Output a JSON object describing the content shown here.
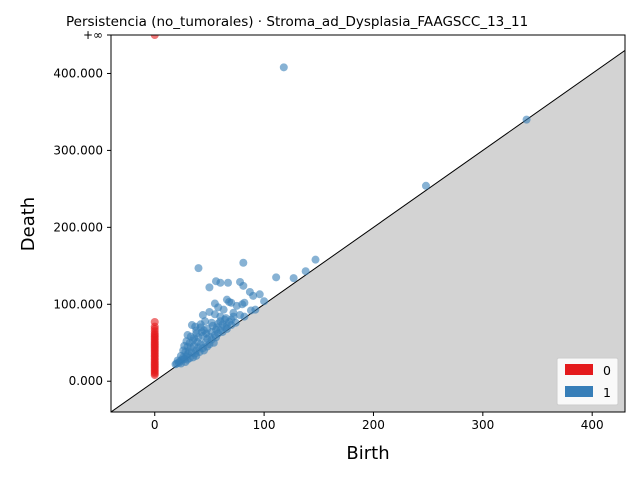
{
  "chart_data": {
    "type": "scatter",
    "title": "Persistencia (no_tumorales) · Stroma_ad_Dysplasia_FAAGSCC_13_11",
    "xlabel": "Birth",
    "ylabel": "Death",
    "xlim": [
      -40,
      430
    ],
    "ylim": [
      -40,
      450
    ],
    "x_ticks": [
      {
        "value": 0,
        "label": "0"
      },
      {
        "value": 100,
        "label": "100"
      },
      {
        "value": 200,
        "label": "200"
      },
      {
        "value": 300,
        "label": "300"
      },
      {
        "value": 400,
        "label": "400"
      }
    ],
    "y_ticks": [
      {
        "value": 0,
        "label": "0.000"
      },
      {
        "value": 100,
        "label": "100.000"
      },
      {
        "value": 200,
        "label": "200.000"
      },
      {
        "value": 300,
        "label": "300.000"
      },
      {
        "value": 400,
        "label": "400.000"
      },
      {
        "value": 450,
        "label": "+∞"
      }
    ],
    "infinity_value": 450,
    "diagonal": true,
    "legend_position": "lower-right",
    "series": [
      {
        "name": "0",
        "color": "#e41a1c",
        "points": [
          [
            0,
            450
          ],
          [
            0,
            77
          ],
          [
            0,
            71
          ],
          [
            0,
            68
          ],
          [
            0,
            65
          ],
          [
            0,
            62
          ],
          [
            0,
            60
          ],
          [
            0,
            58
          ],
          [
            0,
            56
          ],
          [
            0,
            54
          ],
          [
            0,
            52
          ],
          [
            0,
            50
          ],
          [
            0,
            48
          ],
          [
            0,
            46
          ],
          [
            0,
            44
          ],
          [
            0,
            42
          ],
          [
            0,
            40
          ],
          [
            0,
            38
          ],
          [
            0,
            36
          ],
          [
            0,
            34
          ],
          [
            0,
            32
          ],
          [
            0,
            30
          ],
          [
            0,
            28
          ],
          [
            0,
            26
          ],
          [
            0,
            24
          ],
          [
            0,
            22
          ],
          [
            0,
            20
          ],
          [
            0,
            18
          ],
          [
            0,
            16
          ],
          [
            0,
            14
          ],
          [
            0,
            12
          ],
          [
            0,
            10
          ],
          [
            0,
            8
          ]
        ]
      },
      {
        "name": "1",
        "color": "#377eb8",
        "points": [
          [
            118,
            408
          ],
          [
            340,
            340
          ],
          [
            248,
            254
          ],
          [
            147,
            158
          ],
          [
            138,
            143
          ],
          [
            127,
            134
          ],
          [
            111,
            135
          ],
          [
            81,
            154
          ],
          [
            40,
            147
          ],
          [
            50,
            122
          ],
          [
            56,
            130
          ],
          [
            60,
            128
          ],
          [
            67,
            128
          ],
          [
            78,
            129
          ],
          [
            81,
            124
          ],
          [
            87,
            116
          ],
          [
            96,
            113
          ],
          [
            100,
            104
          ],
          [
            90,
            111
          ],
          [
            88,
            92
          ],
          [
            92,
            93
          ],
          [
            80,
            100
          ],
          [
            82,
            102
          ],
          [
            75,
            98
          ],
          [
            70,
            102
          ],
          [
            66,
            106
          ],
          [
            68,
            103
          ],
          [
            55,
            101
          ],
          [
            58,
            96
          ],
          [
            63,
            93
          ],
          [
            72,
            89
          ],
          [
            78,
            86
          ],
          [
            82,
            84
          ],
          [
            44,
            86
          ],
          [
            50,
            90
          ],
          [
            55,
            87
          ],
          [
            60,
            84
          ],
          [
            65,
            82
          ],
          [
            70,
            80
          ],
          [
            34,
            73
          ],
          [
            37,
            71
          ],
          [
            42,
            70
          ],
          [
            48,
            68
          ],
          [
            53,
            72
          ],
          [
            58,
            75
          ],
          [
            62,
            74
          ],
          [
            66,
            72
          ],
          [
            38,
            66
          ],
          [
            43,
            64
          ],
          [
            47,
            62
          ],
          [
            52,
            64
          ],
          [
            56,
            67
          ],
          [
            60,
            66
          ],
          [
            64,
            70
          ],
          [
            50,
            58
          ],
          [
            30,
            60
          ],
          [
            33,
            58
          ],
          [
            36,
            56
          ],
          [
            40,
            57
          ],
          [
            44,
            59
          ],
          [
            48,
            55
          ],
          [
            52,
            54
          ],
          [
            56,
            57
          ],
          [
            29,
            52
          ],
          [
            32,
            50
          ],
          [
            35,
            53
          ],
          [
            39,
            51
          ],
          [
            42,
            48
          ],
          [
            46,
            50
          ],
          [
            50,
            48
          ],
          [
            54,
            50
          ],
          [
            27,
            46
          ],
          [
            30,
            45
          ],
          [
            33,
            44
          ],
          [
            36,
            46
          ],
          [
            40,
            44
          ],
          [
            44,
            43
          ],
          [
            48,
            45
          ],
          [
            38,
            40
          ],
          [
            26,
            40
          ],
          [
            28,
            38
          ],
          [
            31,
            39
          ],
          [
            34,
            37
          ],
          [
            37,
            36
          ],
          [
            41,
            38
          ],
          [
            45,
            40
          ],
          [
            30,
            35
          ],
          [
            24,
            33
          ],
          [
            26,
            31
          ],
          [
            29,
            32
          ],
          [
            32,
            30
          ],
          [
            35,
            31
          ],
          [
            38,
            33
          ],
          [
            27,
            29
          ],
          [
            30,
            28
          ],
          [
            21,
            27
          ],
          [
            23,
            26
          ],
          [
            25,
            28
          ],
          [
            28,
            25
          ],
          [
            22,
            24
          ],
          [
            19,
            22
          ],
          [
            20,
            23
          ],
          [
            24,
            23
          ],
          [
            55,
            60
          ],
          [
            58,
            62
          ],
          [
            62,
            64
          ],
          [
            66,
            68
          ],
          [
            70,
            73
          ],
          [
            74,
            76
          ],
          [
            60,
            78
          ],
          [
            64,
            80
          ],
          [
            52,
            76
          ],
          [
            46,
            78
          ],
          [
            42,
            74
          ],
          [
            38,
            62
          ],
          [
            45,
            66
          ],
          [
            57,
            70
          ],
          [
            68,
            77
          ],
          [
            72,
            84
          ]
        ]
      }
    ]
  }
}
